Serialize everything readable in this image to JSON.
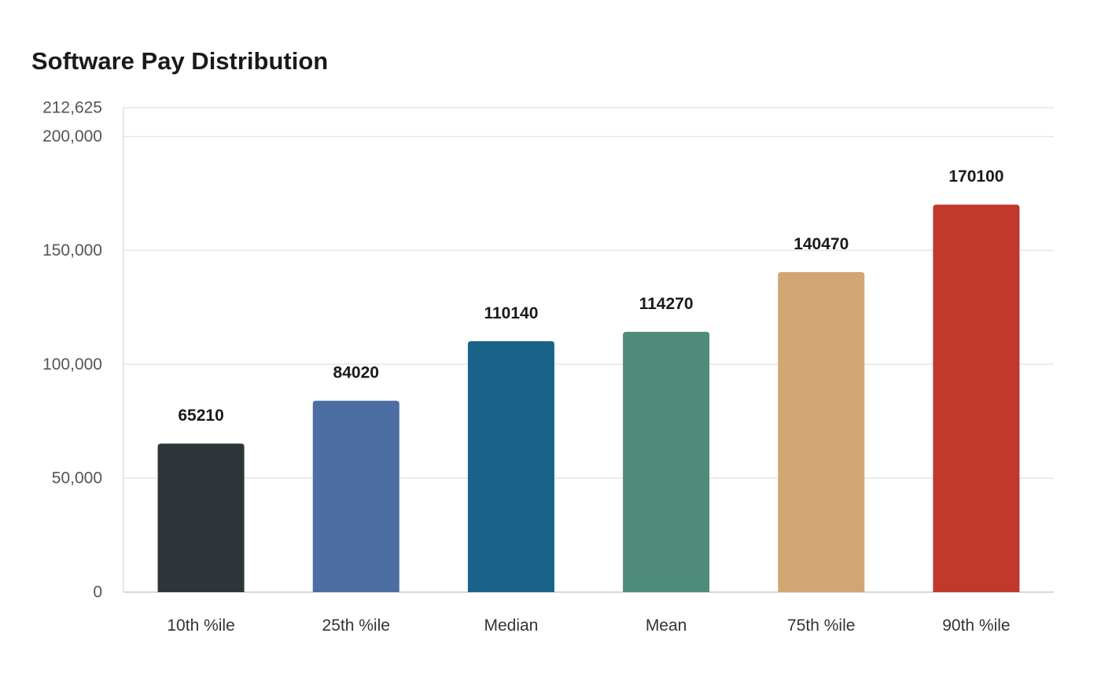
{
  "chart_data": {
    "type": "bar",
    "title": "Software Pay Distribution",
    "xlabel": "",
    "ylabel": "",
    "categories": [
      "10th %ile",
      "25th %ile",
      "Median",
      "Mean",
      "75th %ile",
      "90th %ile"
    ],
    "values": [
      65210,
      84020,
      110140,
      114270,
      140470,
      170100
    ],
    "value_labels": [
      "65210",
      "84020",
      "110140",
      "114270",
      "140470",
      "170100"
    ],
    "colors": [
      "#2e3538",
      "#4c6ea3",
      "#196389",
      "#4f8c7b",
      "#d2a574",
      "#c0392b"
    ],
    "ylim": [
      0,
      212625
    ],
    "yticks": [
      0,
      50000,
      100000,
      150000,
      200000,
      212625
    ],
    "ytick_labels": [
      "0",
      "50,000",
      "100,000",
      "150,000",
      "200,000",
      "212,625"
    ],
    "grid": true,
    "legend": "none"
  }
}
